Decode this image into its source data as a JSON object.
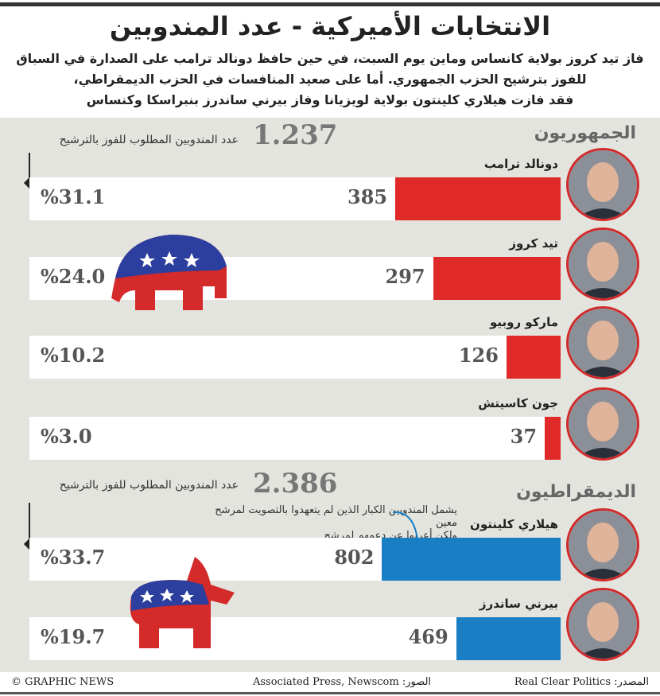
{
  "title": "الانتخابات الأميركية - عدد المندوبين",
  "subtitle": [
    "فاز تيد كروز بولاية كانساس وماين يوم السبت، في حين حافظ دونالد ترامب على الصدارة في السباق",
    "للفوز بترشيح الحزب الجمهوري. أما على صعيد المنافسات في الحزب الديمقراطي،",
    "فقد فازت هيلاري كلينتون بولاية لويزيانا وفاز بيرني ساندرز بنبراسكا وكنساس"
  ],
  "colors": {
    "republican": "#e02a2a",
    "democrat": "#1a7ec4",
    "panel": "#e4e4df"
  },
  "chart_data": [
    {
      "type": "bar",
      "title": "الجمهوريون",
      "threshold": 1237,
      "threshold_label": "1.237",
      "threshold_text": "عدد المندوبين المطلوب للفوز بالترشيح",
      "categories": [
        "دونالد ترامب",
        "تيد كروز",
        "ماركو روبيو",
        "جون كاسيتش"
      ],
      "values": [
        385,
        297,
        126,
        37
      ],
      "values_label": [
        "385",
        "297",
        "126",
        "37"
      ],
      "percent": [
        "%31.1",
        "%24.0",
        "%10.2",
        "%3.0"
      ],
      "xlim": [
        0,
        1237
      ]
    },
    {
      "type": "bar",
      "title": "الديمقراطيون",
      "threshold": 2386,
      "threshold_label": "2.386",
      "threshold_text": "عدد المندوبين المطلوب للفوز بالترشيح",
      "note": [
        "يشمل المندوبين الكبار الذين لم يتعهدوا بالتصويت لمرشح معين",
        "ولكن أعربوا عن دعمهم لمرشح"
      ],
      "categories": [
        "هيلاري كلينتون",
        "بيرني ساندرز"
      ],
      "values": [
        802,
        469
      ],
      "values_label": [
        "802",
        "469"
      ],
      "percent": [
        "%33.7",
        "%19.7"
      ],
      "xlim": [
        0,
        2386
      ]
    }
  ],
  "footer": {
    "copyright": "© GRAPHIC NEWS",
    "photos": "الصور: Associated Press, Newscom",
    "source": "المصدر: Real Clear Politics"
  }
}
